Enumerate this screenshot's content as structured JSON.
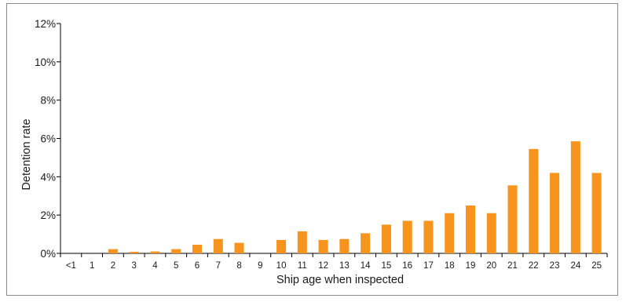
{
  "chart_data": {
    "type": "bar",
    "title": "",
    "xlabel": "Ship age when inspected",
    "ylabel": "Detention rate",
    "ylim": [
      0,
      12
    ],
    "y_ticks": [
      "0%",
      "2%",
      "4%",
      "6%",
      "8%",
      "10%",
      "12%"
    ],
    "y_tick_values": [
      0,
      2,
      4,
      6,
      8,
      10,
      12
    ],
    "grid": false,
    "bar_color": "#F7941D",
    "categories": [
      "<1",
      "1",
      "2",
      "3",
      "4",
      "5",
      "6",
      "7",
      "8",
      "9",
      "10",
      "11",
      "12",
      "13",
      "14",
      "15",
      "16",
      "17",
      "18",
      "19",
      "20",
      "21",
      "22",
      "23",
      "24",
      "25"
    ],
    "values": [
      0,
      0,
      0.22,
      0.08,
      0.1,
      0.22,
      0.45,
      0.75,
      0.55,
      0,
      0.7,
      1.15,
      0.7,
      0.75,
      1.05,
      1.5,
      1.7,
      1.7,
      2.1,
      2.5,
      2.1,
      3.55,
      5.45,
      4.2,
      5.85,
      4.2
    ]
  }
}
